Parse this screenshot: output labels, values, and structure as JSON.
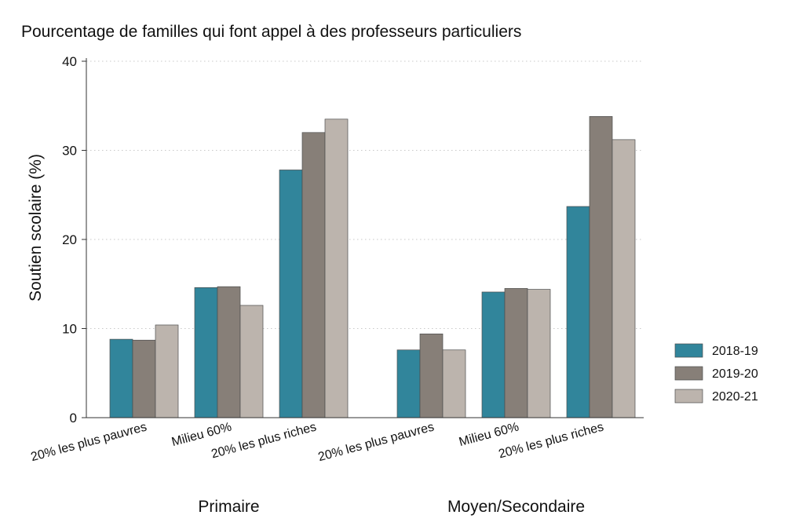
{
  "chart_data": {
    "type": "bar",
    "title": "Pourcentage de familles qui font appel à des professeurs particuliers",
    "ylabel": "Soutien scolaire (%)",
    "ylim": [
      0,
      40
    ],
    "yticks": [
      0,
      10,
      20,
      30,
      40
    ],
    "grid": "horizontal dotted",
    "legend_position": "right",
    "groups": [
      {
        "name": "Primaire",
        "categories": [
          "20% les plus pauvres",
          "Milieu 60%",
          "20% les plus riches"
        ]
      },
      {
        "name": "Moyen/Secondaire",
        "categories": [
          "20% les plus pauvres",
          "Milieu 60%",
          "20% les plus riches"
        ]
      }
    ],
    "series": [
      {
        "name": "2018-19",
        "color": "#31859b",
        "values": [
          [
            8.8,
            14.6,
            27.8
          ],
          [
            7.6,
            14.1,
            23.7
          ]
        ]
      },
      {
        "name": "2019-20",
        "color": "#877f78",
        "values": [
          [
            8.7,
            14.7,
            32.0
          ],
          [
            9.4,
            14.5,
            33.8
          ]
        ]
      },
      {
        "name": "2020-21",
        "color": "#bcb4ad",
        "values": [
          [
            10.4,
            12.6,
            33.5
          ],
          [
            7.6,
            14.4,
            31.2
          ]
        ]
      }
    ]
  }
}
